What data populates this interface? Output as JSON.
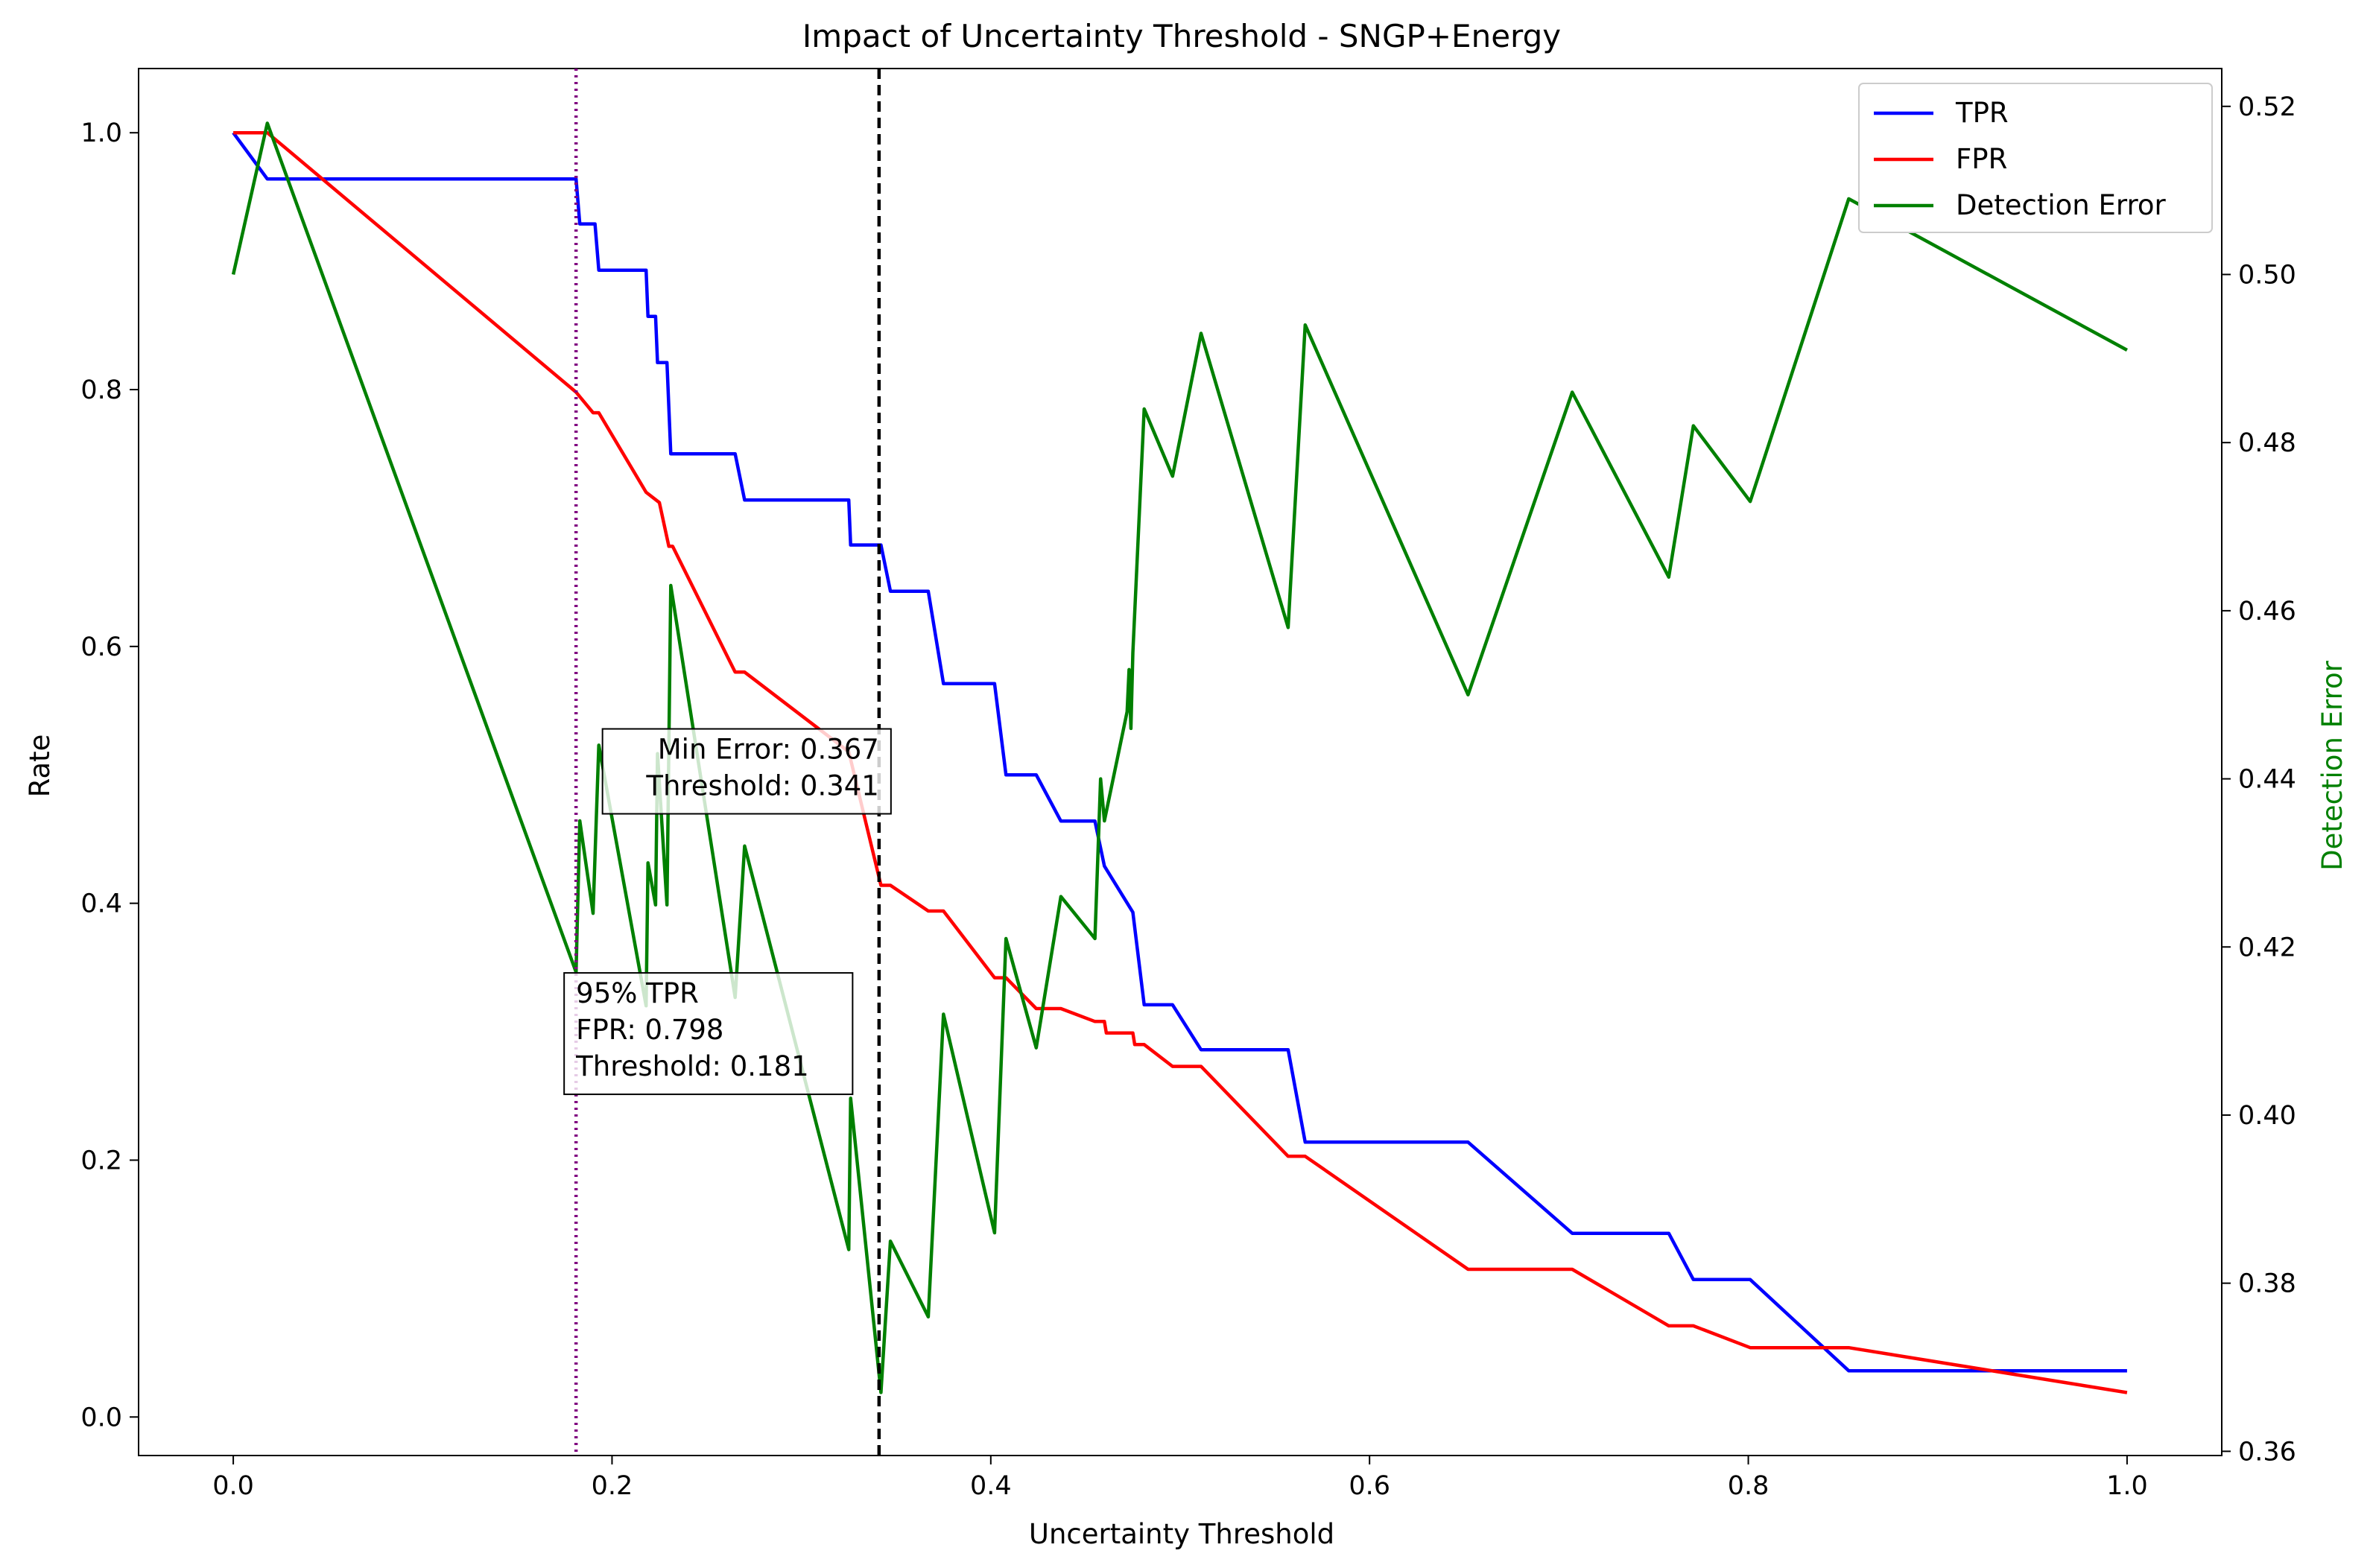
{
  "chart_data": {
    "type": "line",
    "title": "Impact of Uncertainty Threshold - SNGP+Energy",
    "xlabel": "Uncertainty Threshold",
    "ylabel": "Rate",
    "y2label": "Detection Error",
    "xlim": [
      -0.05,
      1.05
    ],
    "ylim": [
      -0.03,
      1.05
    ],
    "y2lim": [
      0.3595,
      0.5245
    ],
    "xticks": [
      "0.0",
      "0.2",
      "0.4",
      "0.6",
      "0.8",
      "1.0"
    ],
    "yticks": [
      "0.0",
      "0.2",
      "0.4",
      "0.6",
      "0.8",
      "1.0"
    ],
    "y2ticks": [
      "0.36",
      "0.38",
      "0.40",
      "0.42",
      "0.44",
      "0.46",
      "0.48",
      "0.50",
      "0.52"
    ],
    "grid": false,
    "legend_position": "upper right",
    "series": [
      {
        "name": "TPR",
        "axis": "left",
        "color": "#0000ff",
        "points": [
          [
            0.0,
            1.0
          ],
          [
            0.018,
            0.964
          ],
          [
            0.181,
            0.964
          ],
          [
            0.183,
            0.929
          ],
          [
            0.191,
            0.929
          ],
          [
            0.193,
            0.893
          ],
          [
            0.218,
            0.893
          ],
          [
            0.219,
            0.857
          ],
          [
            0.223,
            0.857
          ],
          [
            0.224,
            0.821
          ],
          [
            0.229,
            0.821
          ],
          [
            0.231,
            0.75
          ],
          [
            0.265,
            0.75
          ],
          [
            0.27,
            0.714
          ],
          [
            0.325,
            0.714
          ],
          [
            0.326,
            0.679
          ],
          [
            0.342,
            0.679
          ],
          [
            0.347,
            0.643
          ],
          [
            0.367,
            0.643
          ],
          [
            0.375,
            0.571
          ],
          [
            0.402,
            0.571
          ],
          [
            0.408,
            0.5
          ],
          [
            0.424,
            0.5
          ],
          [
            0.437,
            0.464
          ],
          [
            0.455,
            0.464
          ],
          [
            0.46,
            0.429
          ],
          [
            0.475,
            0.393
          ],
          [
            0.481,
            0.321
          ],
          [
            0.496,
            0.321
          ],
          [
            0.511,
            0.286
          ],
          [
            0.557,
            0.286
          ],
          [
            0.566,
            0.214
          ],
          [
            0.652,
            0.214
          ],
          [
            0.707,
            0.143
          ],
          [
            0.758,
            0.143
          ],
          [
            0.771,
            0.107
          ],
          [
            0.801,
            0.107
          ],
          [
            0.853,
            0.036
          ],
          [
            1.0,
            0.036
          ]
        ]
      },
      {
        "name": "FPR",
        "axis": "left",
        "color": "#ff0000",
        "points": [
          [
            0.0,
            1.0
          ],
          [
            0.018,
            1.0
          ],
          [
            0.181,
            0.798
          ],
          [
            0.19,
            0.782
          ],
          [
            0.193,
            0.782
          ],
          [
            0.218,
            0.72
          ],
          [
            0.225,
            0.712
          ],
          [
            0.23,
            0.678
          ],
          [
            0.232,
            0.678
          ],
          [
            0.265,
            0.58
          ],
          [
            0.27,
            0.58
          ],
          [
            0.325,
            0.518
          ],
          [
            0.342,
            0.414
          ],
          [
            0.347,
            0.414
          ],
          [
            0.367,
            0.394
          ],
          [
            0.375,
            0.394
          ],
          [
            0.402,
            0.342
          ],
          [
            0.408,
            0.342
          ],
          [
            0.424,
            0.318
          ],
          [
            0.437,
            0.318
          ],
          [
            0.455,
            0.308
          ],
          [
            0.46,
            0.308
          ],
          [
            0.461,
            0.299
          ],
          [
            0.475,
            0.299
          ],
          [
            0.476,
            0.29
          ],
          [
            0.481,
            0.29
          ],
          [
            0.496,
            0.273
          ],
          [
            0.511,
            0.273
          ],
          [
            0.557,
            0.203
          ],
          [
            0.566,
            0.203
          ],
          [
            0.652,
            0.115
          ],
          [
            0.707,
            0.115
          ],
          [
            0.758,
            0.071
          ],
          [
            0.771,
            0.071
          ],
          [
            0.801,
            0.054
          ],
          [
            0.853,
            0.054
          ],
          [
            1.0,
            0.019
          ]
        ]
      },
      {
        "name": "Detection Error",
        "axis": "right",
        "color": "#008000",
        "points": [
          [
            0.0,
            0.5
          ],
          [
            0.018,
            0.518
          ],
          [
            0.181,
            0.417
          ],
          [
            0.183,
            0.435
          ],
          [
            0.19,
            0.424
          ],
          [
            0.193,
            0.444
          ],
          [
            0.218,
            0.413
          ],
          [
            0.219,
            0.43
          ],
          [
            0.223,
            0.425
          ],
          [
            0.224,
            0.443
          ],
          [
            0.229,
            0.425
          ],
          [
            0.231,
            0.463
          ],
          [
            0.265,
            0.414
          ],
          [
            0.27,
            0.432
          ],
          [
            0.325,
            0.384
          ],
          [
            0.326,
            0.402
          ],
          [
            0.342,
            0.367
          ],
          [
            0.347,
            0.385
          ],
          [
            0.367,
            0.376
          ],
          [
            0.375,
            0.412
          ],
          [
            0.402,
            0.386
          ],
          [
            0.408,
            0.421
          ],
          [
            0.424,
            0.408
          ],
          [
            0.437,
            0.426
          ],
          [
            0.455,
            0.421
          ],
          [
            0.458,
            0.44
          ],
          [
            0.46,
            0.435
          ],
          [
            0.472,
            0.448
          ],
          [
            0.473,
            0.453
          ],
          [
            0.474,
            0.446
          ],
          [
            0.475,
            0.455
          ],
          [
            0.481,
            0.484
          ],
          [
            0.496,
            0.476
          ],
          [
            0.511,
            0.493
          ],
          [
            0.557,
            0.458
          ],
          [
            0.566,
            0.494
          ],
          [
            0.652,
            0.45
          ],
          [
            0.707,
            0.486
          ],
          [
            0.758,
            0.464
          ],
          [
            0.771,
            0.482
          ],
          [
            0.801,
            0.473
          ],
          [
            0.853,
            0.509
          ],
          [
            1.0,
            0.491
          ]
        ]
      }
    ],
    "reference_lines": [
      {
        "x": 0.181,
        "color": "#800080",
        "style": "dotted"
      },
      {
        "x": 0.341,
        "color": "#000000",
        "style": "dashed"
      }
    ],
    "annotations": [
      {
        "lines": [
          "Min Error: 0.367",
          "Threshold: 0.341"
        ],
        "x": 0.341,
        "y": 0.53,
        "align": "right"
      },
      {
        "lines": [
          "95% TPR",
          "FPR: 0.798",
          "Threshold: 0.181"
        ],
        "x": 0.181,
        "y": 0.34,
        "align": "left"
      }
    ]
  }
}
